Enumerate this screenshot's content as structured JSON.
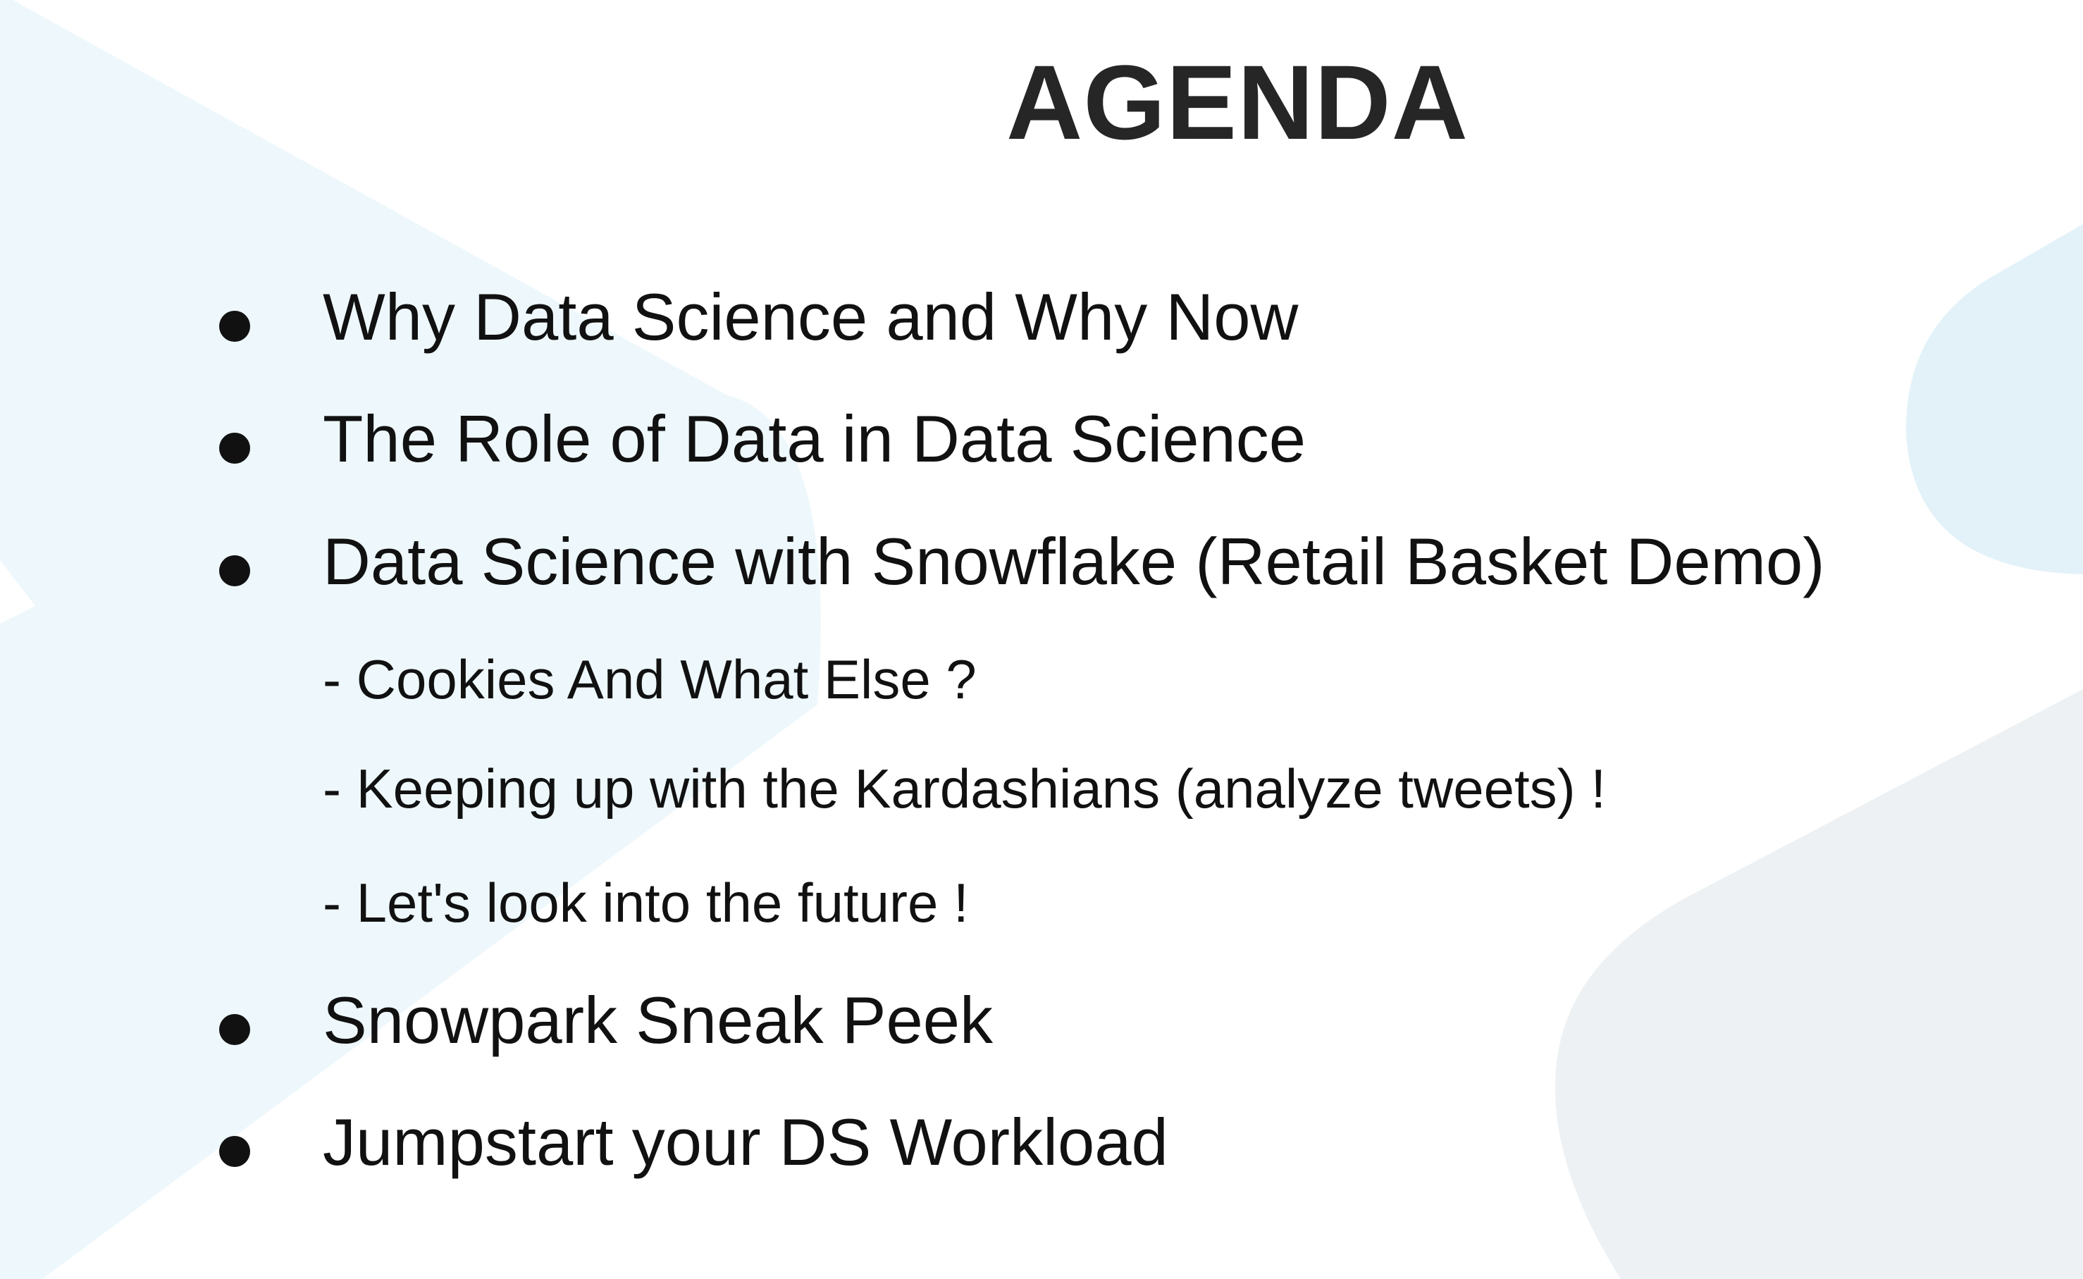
{
  "slide": {
    "title": "AGENDA",
    "items": [
      {
        "kind": "bullet",
        "text": "Why Data Science and Why Now"
      },
      {
        "kind": "bullet",
        "text": "The Role of Data in Data Science"
      },
      {
        "kind": "bullet",
        "text": "Data Science with Snowflake (Retail Basket Demo)"
      },
      {
        "kind": "sub",
        "text": "- Cookies And What Else ?"
      },
      {
        "kind": "sub",
        "text": "- Keeping up with the Kardashians (analyze tweets) !"
      },
      {
        "kind": "sub",
        "text": "- Let's look into the future !"
      },
      {
        "kind": "bullet",
        "text": "Snowpark Sneak Peek"
      },
      {
        "kind": "bullet",
        "text": "Jumpstart your DS Workload"
      }
    ]
  },
  "colors": {
    "background": "#ffffff",
    "title_text": "#262626",
    "body_text": "#111111",
    "decor_light_blue": "#eef8fc",
    "decor_blue": "#e3f2f9",
    "decor_gray": "#edf1f3"
  }
}
